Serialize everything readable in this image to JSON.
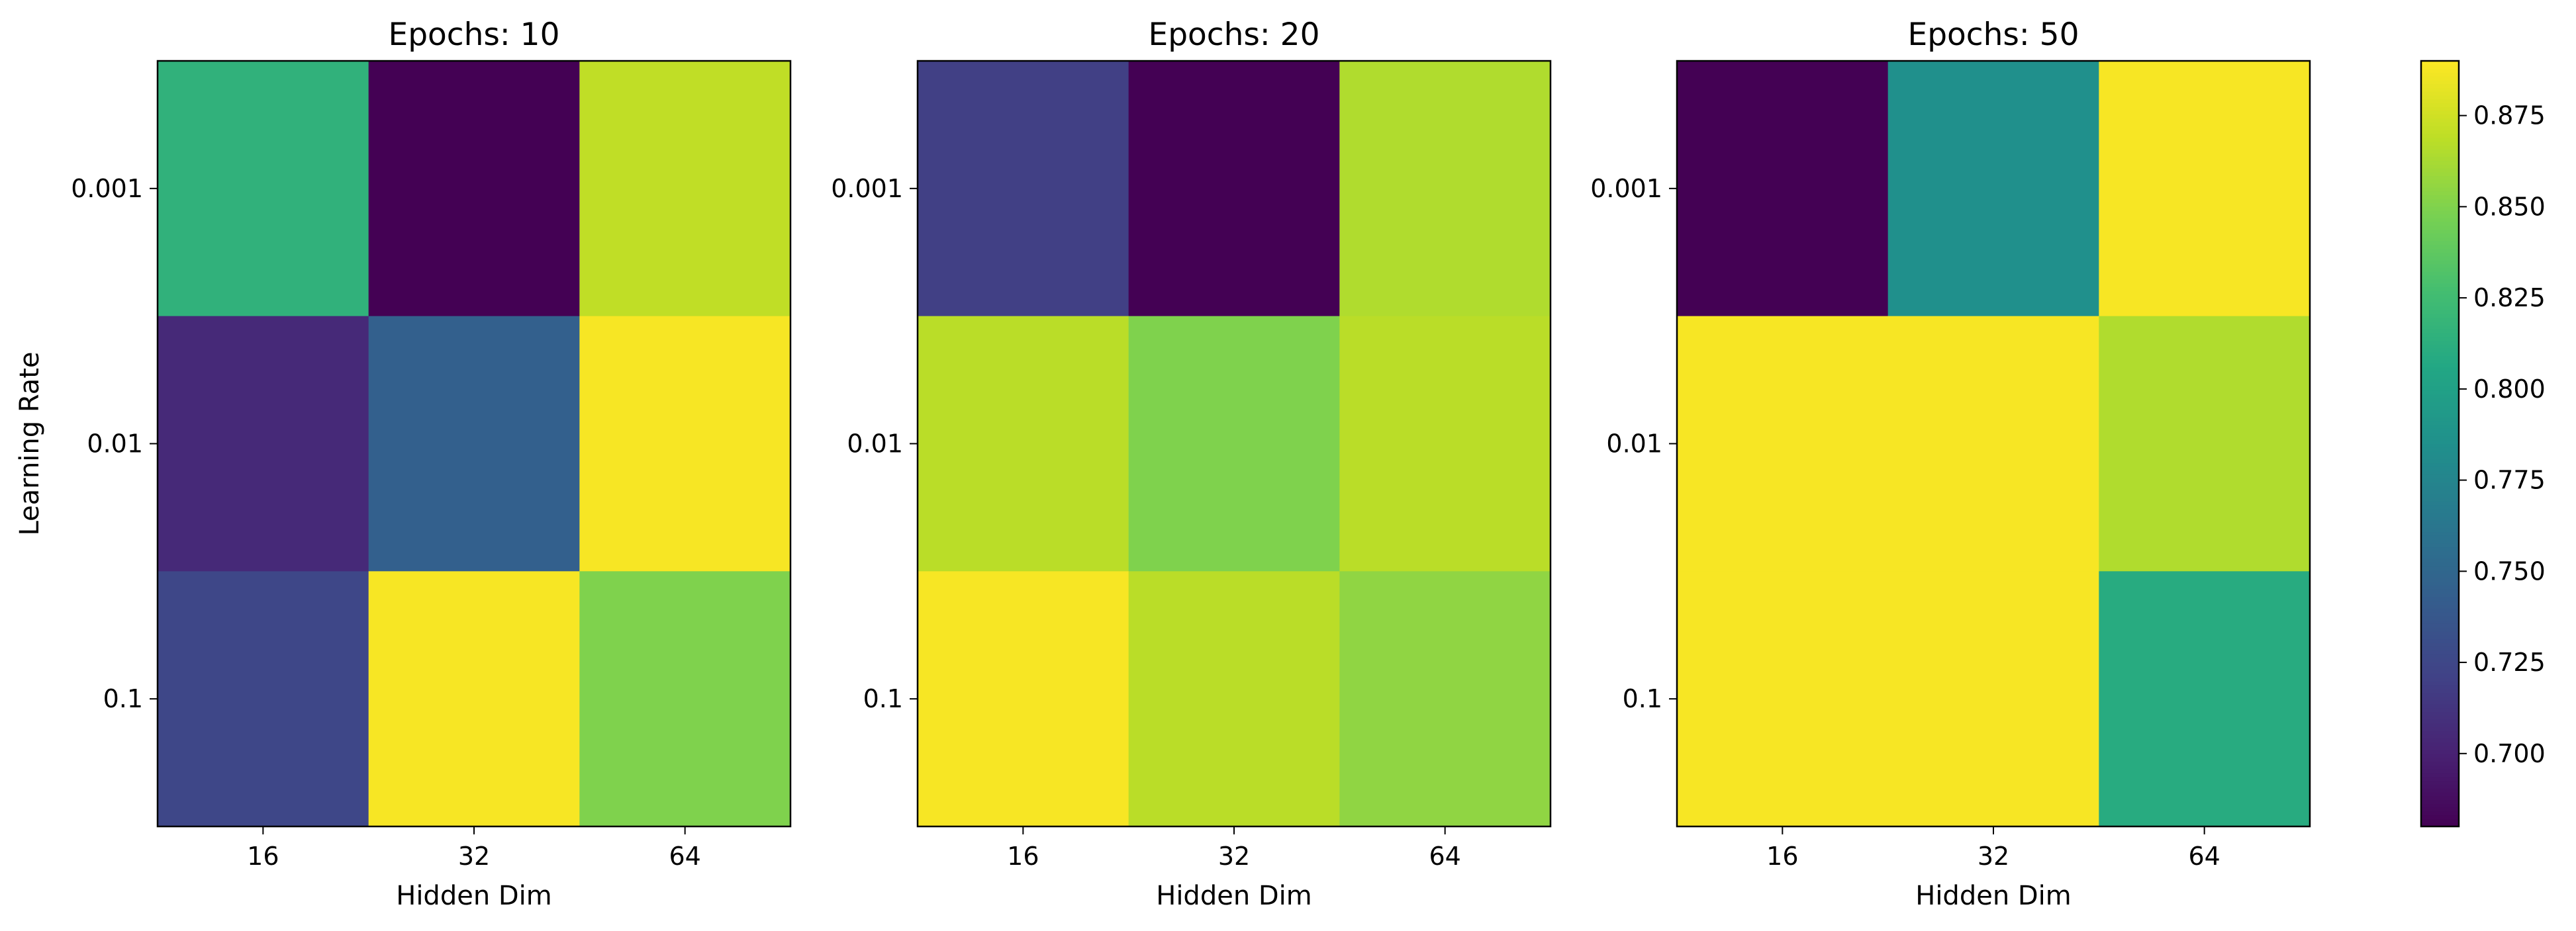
{
  "chart_data": {
    "type": "heatmap",
    "colormap": "viridis",
    "colorbar": {
      "vmin": 0.68,
      "vmax": 0.89,
      "ticks": [
        0.7,
        0.725,
        0.75,
        0.775,
        0.8,
        0.825,
        0.85,
        0.875
      ],
      "tick_labels": [
        "0.700",
        "0.725",
        "0.750",
        "0.775",
        "0.800",
        "0.825",
        "0.850",
        "0.875"
      ]
    },
    "x_categories": [
      "16",
      "32",
      "64"
    ],
    "y_categories": [
      "0.001",
      "0.01",
      "0.1"
    ],
    "xlabel": "Hidden Dim",
    "ylabel": "Learning Rate",
    "panels": [
      {
        "title": "Epochs: 10",
        "values": [
          [
            0.815,
            0.68,
            0.87
          ],
          [
            0.705,
            0.745,
            0.888
          ],
          [
            0.725,
            0.888,
            0.85
          ]
        ]
      },
      {
        "title": "Epochs: 20",
        "values": [
          [
            0.72,
            0.68,
            0.865
          ],
          [
            0.868,
            0.85,
            0.868
          ],
          [
            0.888,
            0.868,
            0.855
          ]
        ]
      },
      {
        "title": "Epochs: 50",
        "values": [
          [
            0.68,
            0.785,
            0.888
          ],
          [
            0.888,
            0.888,
            0.865
          ],
          [
            0.888,
            0.888,
            0.81
          ]
        ]
      }
    ]
  }
}
